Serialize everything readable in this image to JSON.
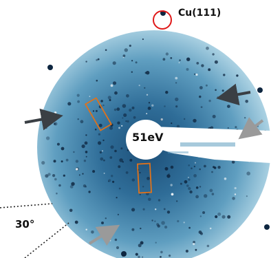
{
  "figure": {
    "cu_reflection_label": "Cu(111)",
    "energy_label": "51eV",
    "angle_label": "30°"
  },
  "colors": {
    "pattern_center": "#1d4f78",
    "pattern_mid": "#5f9ec0",
    "pattern_edge": "#b9dbe9",
    "spot": "#0e2640",
    "marker_circle": "#e01818",
    "marker_rect": "#e0721a",
    "arrow_dark": "#3a3f44",
    "arrow_light": "#9a9a9a",
    "guide_line": "#222222"
  }
}
